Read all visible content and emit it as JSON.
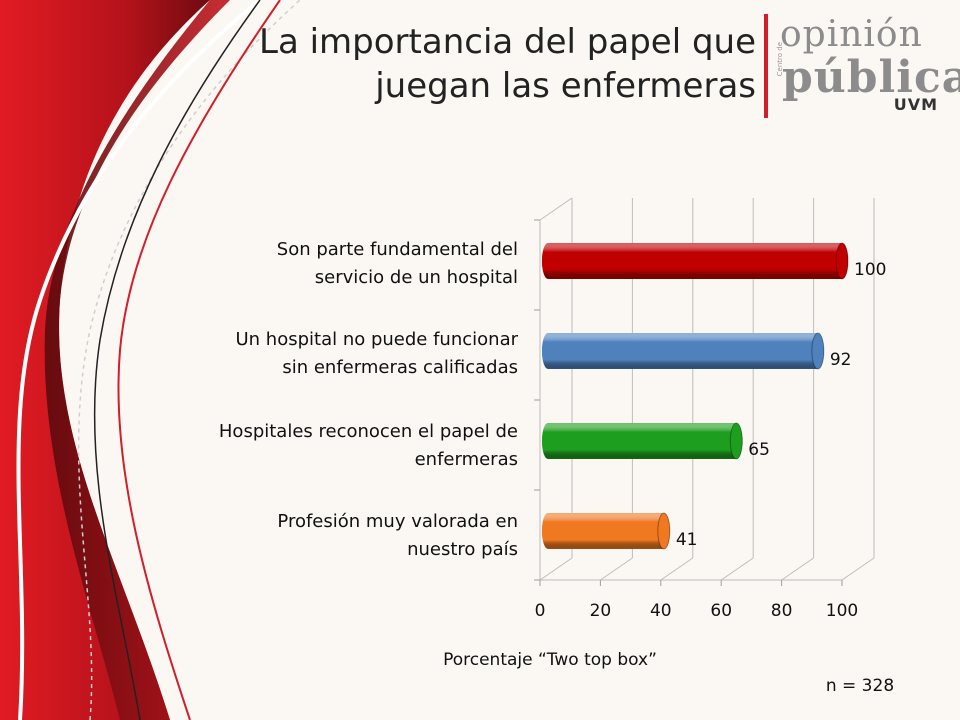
{
  "title": "La importancia del papel que juegan las enfermeras",
  "logo": {
    "top": "opinión",
    "bottom": "pública",
    "side_text": "Centro de",
    "uvm": "UVM"
  },
  "colors": {
    "accent_red": "#c4161c",
    "bar_colors": [
      "#c00000",
      "#4f81bd",
      "#1e9e1e",
      "#f07820"
    ]
  },
  "chart_data": {
    "type": "bar",
    "orientation": "horizontal",
    "categories": [
      "Son parte fundamental del servicio de un hospital",
      "Un hospital no puede funcionar sin enfermeras calificadas",
      "Hospitales reconocen el papel de enfermeras",
      "Profesión muy valorada en nuestro país"
    ],
    "category_lines": [
      [
        "Son parte fundamental del",
        "servicio de un hospital"
      ],
      [
        "Un hospital no puede funcionar",
        "sin enfermeras calificadas"
      ],
      [
        "Hospitales reconocen el papel de",
        "enfermeras"
      ],
      [
        "Profesión muy valorada en",
        "nuestro país"
      ]
    ],
    "values": [
      100,
      92,
      65,
      41
    ],
    "xlim": [
      0,
      100
    ],
    "xticks": [
      0,
      20,
      40,
      60,
      80,
      100
    ],
    "xlabel": "Porcentaje “Two top box”",
    "grid": true,
    "style": "3d-cylinder"
  },
  "note": "n = 328"
}
